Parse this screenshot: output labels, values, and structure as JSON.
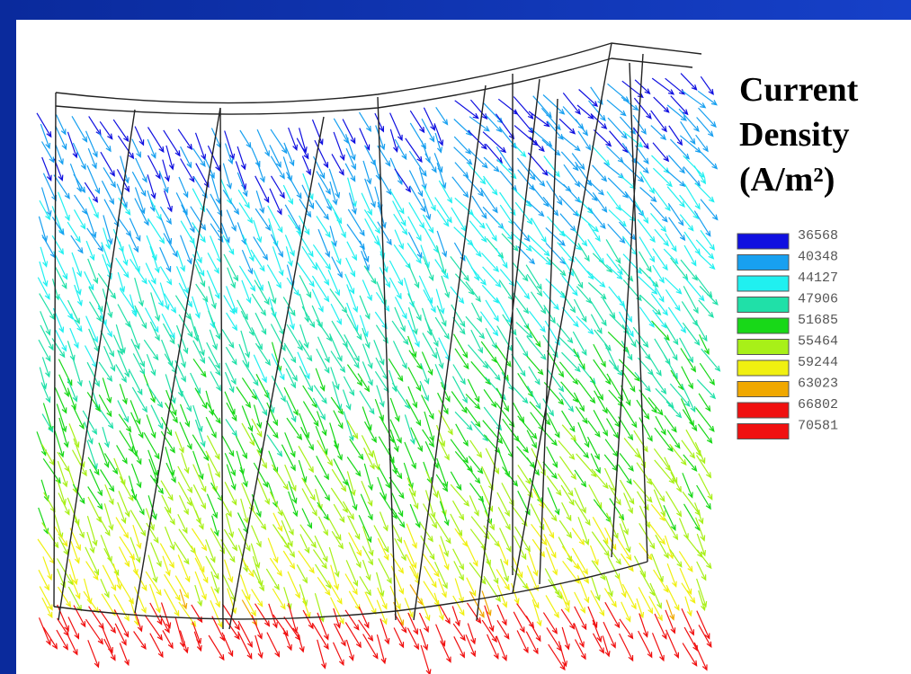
{
  "title": {
    "line1": "Current",
    "line2": "Density",
    "line3": "(A/m²)"
  },
  "legend": {
    "entries": [
      {
        "label": "36568",
        "color": "#1010e0"
      },
      {
        "label": "40348",
        "color": "#18a0f0"
      },
      {
        "label": "44127",
        "color": "#20f0f0"
      },
      {
        "label": "47906",
        "color": "#20e0a8"
      },
      {
        "label": "51685",
        "color": "#18d818"
      },
      {
        "label": "55464",
        "color": "#a8f018"
      },
      {
        "label": "59244",
        "color": "#f0f010"
      },
      {
        "label": "63023",
        "color": "#f0a800"
      },
      {
        "label": "66802",
        "color": "#f01010"
      },
      {
        "label": "70581",
        "color": null
      }
    ]
  }
}
